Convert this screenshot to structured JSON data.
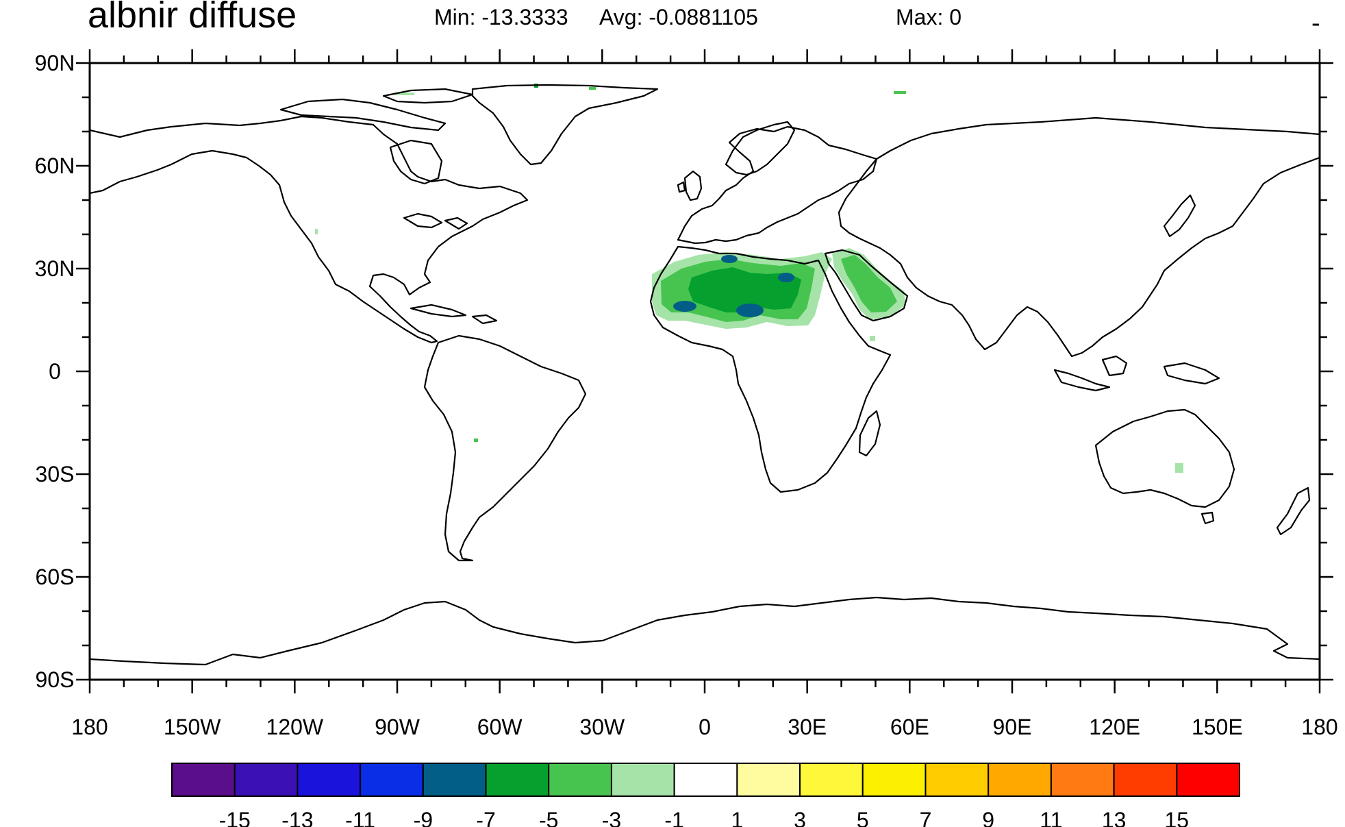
{
  "header": {
    "title": "albnir diffuse",
    "min_label": "Min: -13.3333",
    "avg_label": "Avg: -0.0881105",
    "max_label": "Max: 0",
    "corner_mark": "-"
  },
  "axes": {
    "lon_labels": [
      "180",
      "150W",
      "120W",
      "90W",
      "60W",
      "30W",
      "0",
      "30E",
      "60E",
      "90E",
      "120E",
      "150E",
      "180"
    ],
    "lon_values": [
      -180,
      -150,
      -120,
      -90,
      -60,
      -30,
      0,
      30,
      60,
      90,
      120,
      150,
      180
    ],
    "lat_labels": [
      "90N",
      "60N",
      "30N",
      "0",
      "30S",
      "60S",
      "90S"
    ],
    "lat_values": [
      90,
      60,
      30,
      0,
      -30,
      -60,
      -90
    ],
    "lon_range": [
      -180,
      180
    ],
    "lat_range": [
      -90,
      90
    ],
    "minor_tick_step_deg": 10
  },
  "colorbar": {
    "colors": [
      "#5a0e8a",
      "#3b10b5",
      "#1a13dc",
      "#0a2ee6",
      "#035e87",
      "#06a02f",
      "#47c450",
      "#a6e3a8",
      "#ffffff",
      "#fffca0",
      "#fff83a",
      "#fcf000",
      "#ffcc00",
      "#ffa800",
      "#ff7a12",
      "#ff3d00",
      "#ff0000"
    ],
    "labels": [
      "-15",
      "-13",
      "-11",
      "-9",
      "-7",
      "-5",
      "-3",
      "-1",
      "1",
      "3",
      "5",
      "7",
      "9",
      "11",
      "13",
      "15"
    ]
  },
  "field": {
    "description_values": {
      "sahara_core_level": -9,
      "sahara_mid_level": -5,
      "sahara_outer_level": -3,
      "arabia_level": -5
    }
  }
}
